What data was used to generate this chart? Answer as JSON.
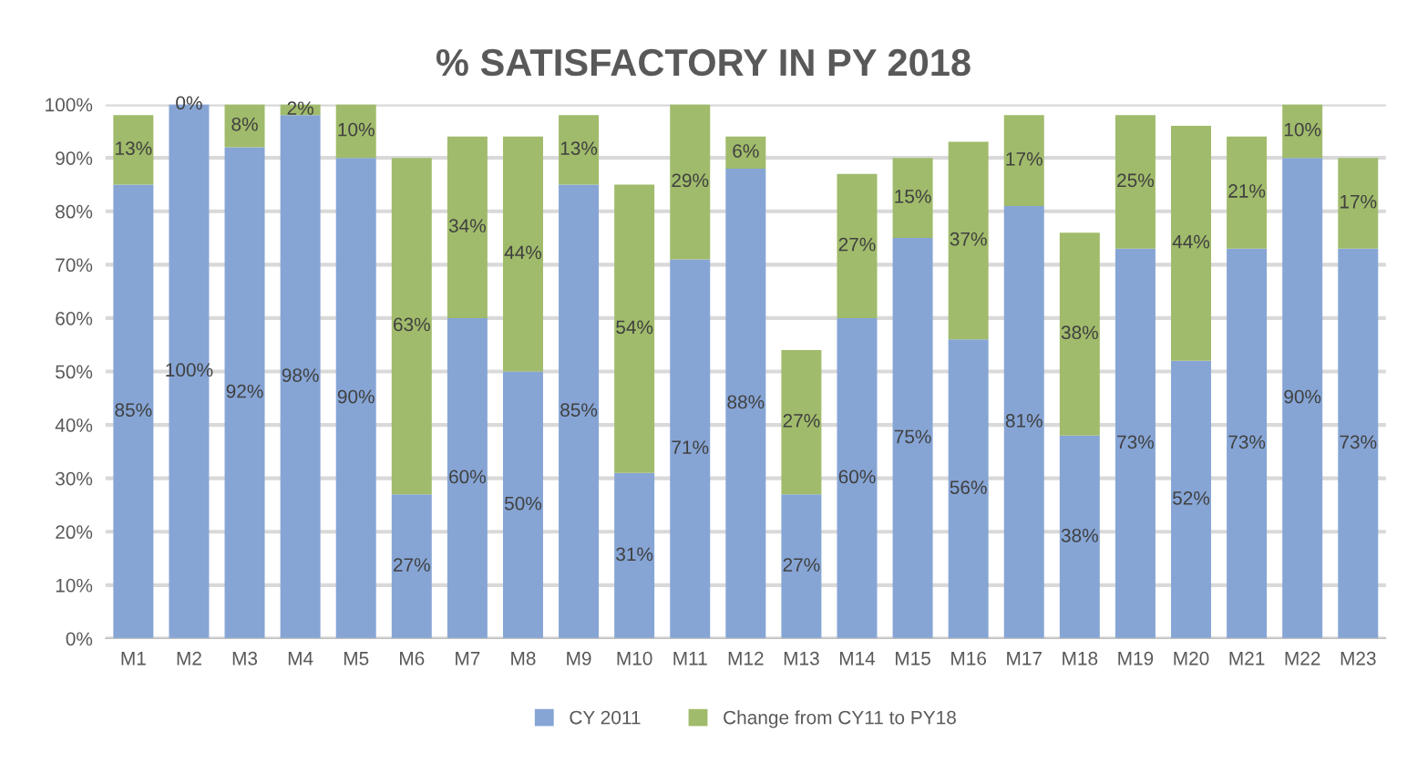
{
  "chart_data": {
    "type": "bar",
    "title": "% SATISFACTORY IN PY 2018",
    "stacked": true,
    "categories": [
      "M1",
      "M2",
      "M3",
      "M4",
      "M5",
      "M6",
      "M7",
      "M8",
      "M9",
      "M10",
      "M11",
      "M12",
      "M13",
      "M14",
      "M15",
      "M16",
      "M17",
      "M18",
      "M19",
      "M20",
      "M21",
      "M22",
      "M23"
    ],
    "series": [
      {
        "name": "CY 2011",
        "color": "#86a5d5",
        "values": [
          85,
          100,
          92,
          98,
          90,
          27,
          60,
          50,
          85,
          31,
          71,
          88,
          27,
          60,
          75,
          56,
          81,
          38,
          73,
          52,
          73,
          90,
          73
        ],
        "value_labels": [
          "85%",
          "100%",
          "92%",
          "98%",
          "90%",
          "27%",
          "60%",
          "50%",
          "85%",
          "31%",
          "71%",
          "88%",
          "27%",
          "60%",
          "75%",
          "56%",
          "81%",
          "38%",
          "73%",
          "52%",
          "73%",
          "90%",
          "73%"
        ]
      },
      {
        "name": "Change from CY11 to PY18",
        "color": "#a0bb6b",
        "values": [
          13,
          0,
          8,
          2,
          10,
          63,
          34,
          44,
          13,
          54,
          29,
          6,
          27,
          27,
          15,
          37,
          17,
          38,
          25,
          44,
          21,
          10,
          17
        ],
        "value_labels": [
          "13%",
          "0%",
          "8%",
          "2%",
          "10%",
          "63%",
          "34%",
          "44%",
          "13%",
          "54%",
          "29%",
          "6%",
          "27%",
          "27%",
          "15%",
          "37%",
          "17%",
          "38%",
          "25%",
          "44%",
          "21%",
          "10%",
          "17%"
        ]
      }
    ],
    "ylim": [
      0,
      100
    ],
    "yticks": [
      {
        "value": 0,
        "label": "0%"
      },
      {
        "value": 10,
        "label": "10%"
      },
      {
        "value": 20,
        "label": "20%"
      },
      {
        "value": 30,
        "label": "30%"
      },
      {
        "value": 40,
        "label": "40%"
      },
      {
        "value": 50,
        "label": "50%"
      },
      {
        "value": 60,
        "label": "60%"
      },
      {
        "value": 70,
        "label": "70%"
      },
      {
        "value": 80,
        "label": "80%"
      },
      {
        "value": 90,
        "label": "90%"
      },
      {
        "value": 100,
        "label": "100%"
      }
    ],
    "grid": "y",
    "legend": "bottom"
  }
}
